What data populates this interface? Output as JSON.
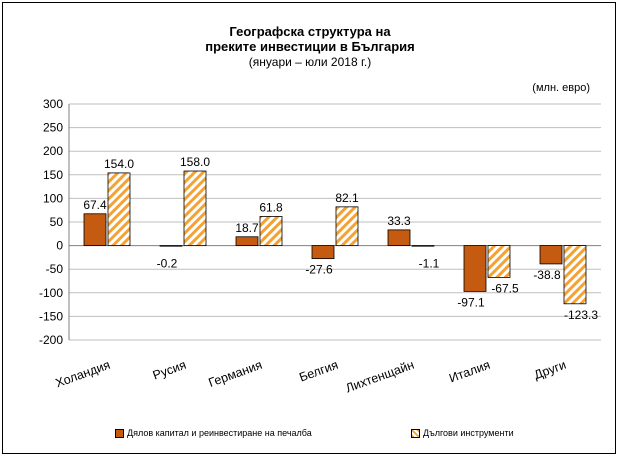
{
  "chart_data": {
    "type": "bar",
    "title": "Географска структура на",
    "title_line2": "преките инвестиции в България",
    "subtitle": "(януари – юли 2018 г.)",
    "unit": "(млн. евро)",
    "categories": [
      "Холандия",
      "Русия",
      "Германия",
      "Белгия",
      "Лихтенщайн",
      "Италия",
      "Други"
    ],
    "series": [
      {
        "name": "Дялов капитал и реинвестиране на печалба",
        "values": [
          67.4,
          -0.2,
          18.7,
          -27.6,
          33.3,
          -97.1,
          -38.8
        ],
        "labels": [
          "67.4",
          "-0.2",
          "18.7",
          "-27.6",
          "33.3",
          "-97.1",
          "-38.8"
        ]
      },
      {
        "name": "Дългови инструменти",
        "values": [
          154.0,
          158.0,
          61.8,
          82.1,
          -1.1,
          -67.5,
          -123.3
        ],
        "labels": [
          "154.0",
          "158.0",
          "61.8",
          "82.1",
          "-1.1",
          "-67.5",
          "-123.3"
        ]
      }
    ],
    "ylim": [
      -200,
      300
    ],
    "yticks": [
      "300",
      "250",
      "200",
      "150",
      "100",
      "50",
      "0",
      "-50",
      "-100",
      "-150",
      "-200"
    ],
    "ytick_values": [
      300,
      250,
      200,
      150,
      100,
      50,
      0,
      -50,
      -100,
      -150,
      -200
    ],
    "grid": true,
    "legend": "bottom",
    "colors": {
      "series1": "#c55a11",
      "series2_stripe": "#f4a234"
    }
  }
}
